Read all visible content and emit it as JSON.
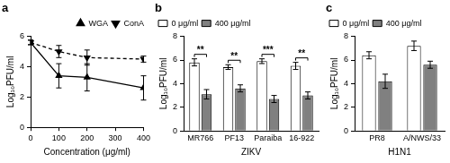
{
  "chart_data": [
    {
      "title": "a",
      "type": "line",
      "x_label": "Concentration (μg/ml)",
      "y_label": "Log₁₀PFU/ml",
      "x": [
        0,
        100,
        200,
        400
      ],
      "series": [
        {
          "name": "WGA",
          "color": "#000000",
          "marker": "triangle",
          "line_style": "solid",
          "values": [
            5.6,
            3.4,
            3.3,
            2.6
          ],
          "errors": [
            0.15,
            0.8,
            0.9,
            0.8
          ]
        },
        {
          "name": "ConA",
          "color": "#000000",
          "marker": "triangle-down",
          "line_style": "dashed",
          "values": [
            5.6,
            5.0,
            4.6,
            4.5
          ],
          "errors": [
            0.15,
            0.4,
            0.5,
            0.2
          ]
        }
      ],
      "xlim": [
        0,
        400
      ],
      "xticks": [
        0,
        100,
        200,
        300,
        400
      ],
      "ylim": [
        0,
        6
      ],
      "yticks": [
        0,
        2,
        4,
        6
      ],
      "grid": false,
      "legend": "top-right"
    },
    {
      "title": "b",
      "type": "bar",
      "x_label": "ZIKV",
      "y_label": "Log₁₀PFU/ml",
      "categories": [
        "MR766",
        "PF13",
        "Paraiba",
        "16-922"
      ],
      "series": [
        {
          "name": "0 μg/ml",
          "color": "#ffffff",
          "values": [
            5.8,
            5.4,
            5.9,
            5.5
          ],
          "errors": [
            0.3,
            0.2,
            0.2,
            0.3
          ]
        },
        {
          "name": "400 μg/ml",
          "color": "#808080",
          "values": [
            3.1,
            3.6,
            2.7,
            3.0
          ],
          "errors": [
            0.4,
            0.3,
            0.3,
            0.3
          ]
        }
      ],
      "annotations": [
        {
          "category": "MR766",
          "text": "**"
        },
        {
          "category": "PF13",
          "text": "**"
        },
        {
          "category": "Paraiba",
          "text": "***"
        },
        {
          "category": "16-922",
          "text": "**"
        }
      ],
      "ylim": [
        0,
        8
      ],
      "yticks": [
        0,
        2,
        4,
        6,
        8
      ],
      "grid": false,
      "legend": "top-left"
    },
    {
      "title": "c",
      "type": "bar",
      "x_label": "H1N1",
      "y_label": "Log₁₀PFU/ml",
      "categories": [
        "PR8",
        "A/NWS/33"
      ],
      "series": [
        {
          "name": "0 μg/ml",
          "color": "#ffffff",
          "values": [
            6.4,
            7.2
          ],
          "errors": [
            0.3,
            0.4
          ]
        },
        {
          "name": "400 μg/ml",
          "color": "#808080",
          "values": [
            4.2,
            5.6
          ],
          "errors": [
            0.6,
            0.3
          ]
        }
      ],
      "ylim": [
        0,
        8
      ],
      "yticks": [
        0,
        2,
        4,
        6,
        8
      ],
      "grid": false,
      "legend": "top-left"
    }
  ]
}
